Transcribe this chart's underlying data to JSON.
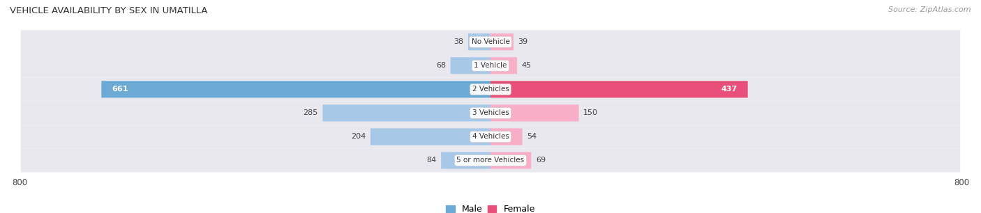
{
  "title": "VEHICLE AVAILABILITY BY SEX IN UMATILLA",
  "source": "Source: ZipAtlas.com",
  "categories": [
    "No Vehicle",
    "1 Vehicle",
    "2 Vehicles",
    "3 Vehicles",
    "4 Vehicles",
    "5 or more Vehicles"
  ],
  "male_values": [
    38,
    68,
    661,
    285,
    204,
    84
  ],
  "female_values": [
    39,
    45,
    437,
    150,
    54,
    69
  ],
  "male_color_light": "#a8c8e8",
  "male_color_dark": "#6aaad4",
  "female_color_light": "#f9aec8",
  "female_color_dark": "#e8507a",
  "axis_limit": 800,
  "background_color": "#ffffff",
  "row_bg_color": "#e8e8ee",
  "label_color": "#444444",
  "title_color": "#333333",
  "legend_male_color": "#6aaad4",
  "legend_female_color": "#e8507a",
  "dark_threshold": 300
}
